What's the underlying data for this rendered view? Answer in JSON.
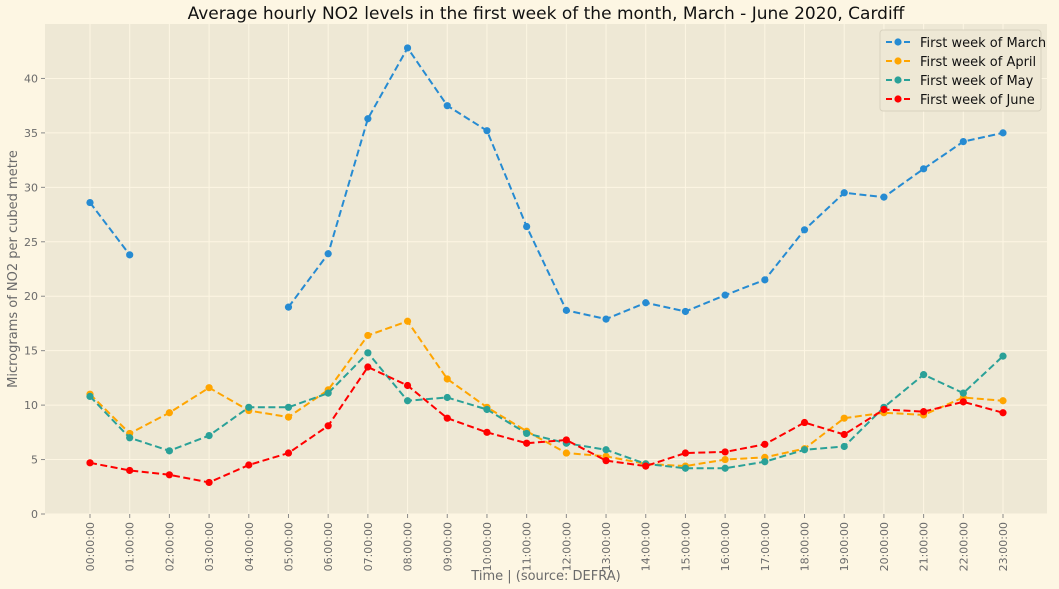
{
  "chart_data": {
    "type": "line",
    "title": "Average hourly NO2 levels in the first week of the month, March - June 2020, Cardiff",
    "xlabel": "Time | (source: DEFRA)",
    "ylabel": "Micrograms of NO2 per cubed metre",
    "ylim": [
      0,
      45
    ],
    "yticks": [
      "0",
      "5",
      "10",
      "15",
      "20",
      "25",
      "30",
      "35",
      "40"
    ],
    "x": [
      "00:00:00",
      "01:00:00",
      "02:00:00",
      "03:00:00",
      "04:00:00",
      "05:00:00",
      "06:00:00",
      "07:00:00",
      "08:00:00",
      "09:00:00",
      "10:00:00",
      "11:00:00",
      "12:00:00",
      "13:00:00",
      "14:00:00",
      "15:00:00",
      "16:00:00",
      "17:00:00",
      "18:00:00",
      "19:00:00",
      "20:00:00",
      "21:00:00",
      "22:00:00",
      "23:00:00"
    ],
    "grid": true,
    "legend_position": "top-right",
    "series": [
      {
        "name": "First week of March",
        "color": "#268bd2",
        "values": [
          28.6,
          23.8,
          null,
          null,
          null,
          19.0,
          23.9,
          36.3,
          42.8,
          37.5,
          35.2,
          26.4,
          18.7,
          17.9,
          19.4,
          18.6,
          20.1,
          21.5,
          26.1,
          29.5,
          29.1,
          31.7,
          34.2,
          35.0
        ]
      },
      {
        "name": "First week of April",
        "color": "#ffa500",
        "values": [
          11.0,
          7.4,
          9.3,
          11.6,
          9.5,
          8.9,
          11.4,
          16.4,
          17.7,
          12.4,
          9.8,
          7.6,
          5.6,
          5.3,
          4.6,
          4.4,
          5.0,
          5.2,
          6.0,
          8.8,
          9.3,
          9.1,
          10.7,
          10.4
        ]
      },
      {
        "name": "First week of May",
        "color": "#2aa198",
        "values": [
          10.8,
          7.0,
          5.8,
          7.2,
          9.8,
          9.8,
          11.1,
          14.8,
          10.4,
          10.7,
          9.6,
          7.4,
          6.5,
          5.9,
          4.6,
          4.2,
          4.2,
          4.8,
          5.9,
          6.2,
          9.8,
          12.8,
          11.1,
          14.5
        ]
      },
      {
        "name": "First week of June",
        "color": "#ff0000",
        "values": [
          4.7,
          4.0,
          3.6,
          2.9,
          4.5,
          5.6,
          8.1,
          13.5,
          11.8,
          8.8,
          7.5,
          6.5,
          6.8,
          4.9,
          4.4,
          5.6,
          5.7,
          6.4,
          8.4,
          7.3,
          9.6,
          9.4,
          10.3,
          9.3
        ]
      }
    ]
  }
}
